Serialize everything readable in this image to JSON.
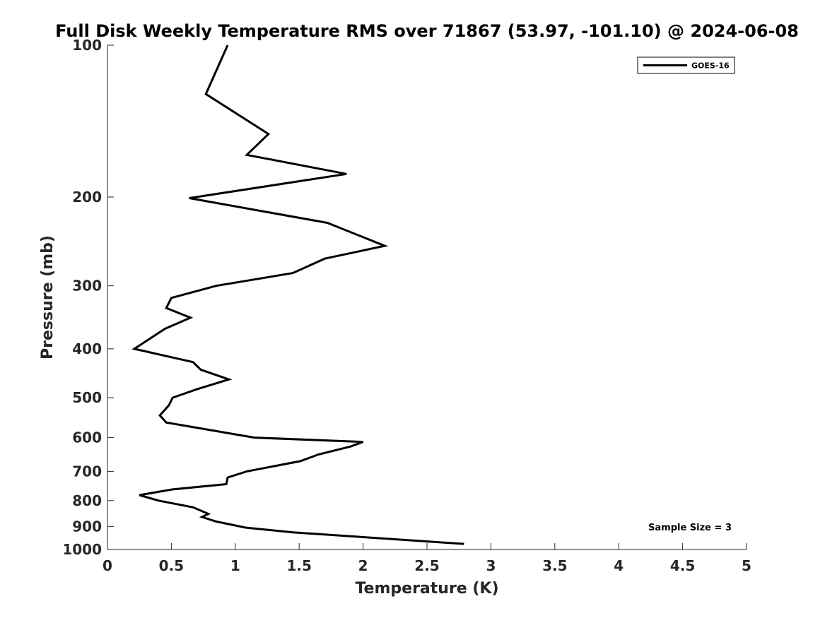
{
  "chart_data": {
    "type": "line",
    "title": "Full Disk Weekly Temperature RMS over 71867 (53.97, -101.10) @ 2024-06-08",
    "xlabel": "Temperature (K)",
    "ylabel": "Pressure (mb)",
    "xlim": [
      0,
      5
    ],
    "ylim": [
      100,
      1000
    ],
    "y_scale": "log",
    "y_reversed": true,
    "grid": false,
    "x_ticks": [
      "0",
      "0.5",
      "1",
      "1.5",
      "2",
      "2.5",
      "3",
      "3.5",
      "4",
      "4.5",
      "5"
    ],
    "y_ticks": [
      "100",
      "200",
      "300",
      "400",
      "500",
      "600",
      "700",
      "800",
      "900",
      "1000"
    ],
    "legend_placement": "top-right",
    "series": [
      {
        "name": "GOES-16",
        "color": "#000000",
        "points": [
          [
            0.94,
            100
          ],
          [
            0.77,
            125
          ],
          [
            1.26,
            150
          ],
          [
            1.09,
            165
          ],
          [
            1.87,
            180
          ],
          [
            0.64,
            201
          ],
          [
            1.72,
            225
          ],
          [
            2.17,
            250
          ],
          [
            1.7,
            265
          ],
          [
            1.45,
            283
          ],
          [
            0.85,
            300
          ],
          [
            0.5,
            317
          ],
          [
            0.46,
            332
          ],
          [
            0.65,
            347
          ],
          [
            0.45,
            365
          ],
          [
            0.21,
            400
          ],
          [
            0.67,
            425
          ],
          [
            0.73,
            440
          ],
          [
            0.95,
            460
          ],
          [
            0.7,
            481
          ],
          [
            0.51,
            500
          ],
          [
            0.48,
            518
          ],
          [
            0.41,
            542
          ],
          [
            0.46,
            560
          ],
          [
            1.15,
            600
          ],
          [
            2.0,
            612
          ],
          [
            1.9,
            625
          ],
          [
            1.65,
            648
          ],
          [
            1.51,
            668
          ],
          [
            1.09,
            700
          ],
          [
            0.94,
            720
          ],
          [
            0.93,
            742
          ],
          [
            0.51,
            760
          ],
          [
            0.25,
            780
          ],
          [
            0.4,
            800
          ],
          [
            0.67,
            825
          ],
          [
            0.79,
            850
          ],
          [
            0.74,
            862
          ],
          [
            0.85,
            880
          ],
          [
            1.08,
            905
          ],
          [
            1.45,
            925
          ],
          [
            2.79,
            975
          ]
        ]
      }
    ],
    "annotation": "Sample Size = 3"
  }
}
